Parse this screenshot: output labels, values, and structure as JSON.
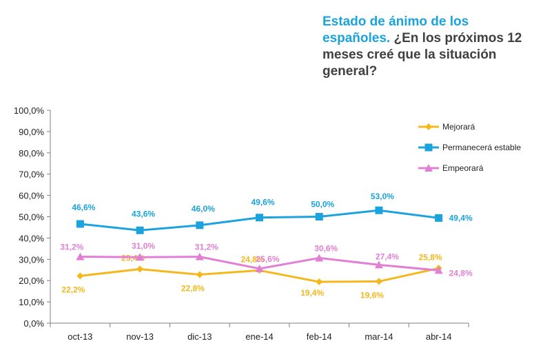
{
  "title": {
    "highlight": "Estado de ánimo de los españoles.",
    "rest": "¿En los próximos 12 meses creé que la situación general?"
  },
  "chart_data": {
    "type": "line",
    "categories": [
      "oct-13",
      "nov-13",
      "dic-13",
      "ene-14",
      "feb-14",
      "mar-14",
      "abr-14"
    ],
    "y_ticks": [
      "0,0%",
      "10,0%",
      "20,0%",
      "30,0%",
      "40,0%",
      "50,0%",
      "60,0%",
      "70,0%",
      "80,0%",
      "90,0%",
      "100,0%"
    ],
    "ylim": [
      0,
      100
    ],
    "grid": false,
    "legend_position": "top-right",
    "series": [
      {
        "name": "Mejorará",
        "color": "#f4b81c",
        "marker": "diamond",
        "values": [
          22.2,
          25.4,
          22.8,
          24.8,
          19.4,
          19.6,
          25.8
        ],
        "labels": [
          "22,2%",
          "25,4%",
          "22,8%",
          "24,8%",
          "19,4%",
          "19,6%",
          "25,8%"
        ]
      },
      {
        "name": "Permanecerá estable",
        "color": "#1aa3dc",
        "marker": "square",
        "values": [
          46.6,
          43.6,
          46.0,
          49.6,
          50.0,
          53.0,
          49.4
        ],
        "labels": [
          "46,6%",
          "43,6%",
          "46,0%",
          "49,6%",
          "50,0%",
          "53,0%",
          "49,4%"
        ]
      },
      {
        "name": "Empeorará",
        "color": "#e27fd4",
        "marker": "triangle",
        "values": [
          31.2,
          31.0,
          31.2,
          25.6,
          30.6,
          27.4,
          24.8
        ],
        "labels": [
          "31,2%",
          "31,0%",
          "31,2%",
          "25,6%",
          "30,6%",
          "27,4%",
          "24,8%"
        ]
      }
    ]
  }
}
